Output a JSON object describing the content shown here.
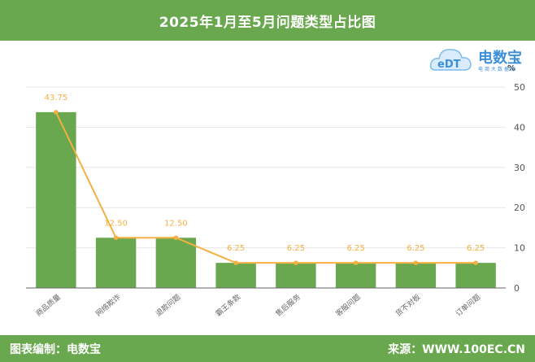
{
  "header": {
    "title": "2025年1月至5月问题类型占比图"
  },
  "logo": {
    "name": "电数宝",
    "sub": "电商大数据库",
    "glyph": "eDT"
  },
  "footer": {
    "left": "图表编制：电数宝",
    "right": "来源：WWW.100EC.CN"
  },
  "colors": {
    "bar": "#6aa84f",
    "line": "#f6b042",
    "header": "#6aa84f",
    "grid": "#e6e6e6",
    "axis": "#666666"
  },
  "chart_data": {
    "type": "bar",
    "title": "2025年1月至5月问题类型占比图",
    "categories": [
      "商品质量",
      "网络欺诈",
      "退款问题",
      "霸王条款",
      "售后服务",
      "客服问题",
      "货不对板",
      "订单问题"
    ],
    "series": [
      {
        "type": "bar",
        "values": [
          43.75,
          12.5,
          12.5,
          6.25,
          6.25,
          6.25,
          6.25,
          6.25
        ]
      },
      {
        "type": "line",
        "values": [
          43.75,
          12.5,
          12.5,
          6.25,
          6.25,
          6.25,
          6.25,
          6.25
        ]
      }
    ],
    "data_labels": [
      "43.75",
      "12.50",
      "12.50",
      "6.25",
      "6.25",
      "6.25",
      "6.25",
      "6.25"
    ],
    "y_unit": "%",
    "ylim": [
      0,
      50
    ],
    "yticks": [
      0,
      10,
      20,
      30,
      40,
      50
    ],
    "y_axis_side": "right",
    "grid": true,
    "legend": "none"
  }
}
